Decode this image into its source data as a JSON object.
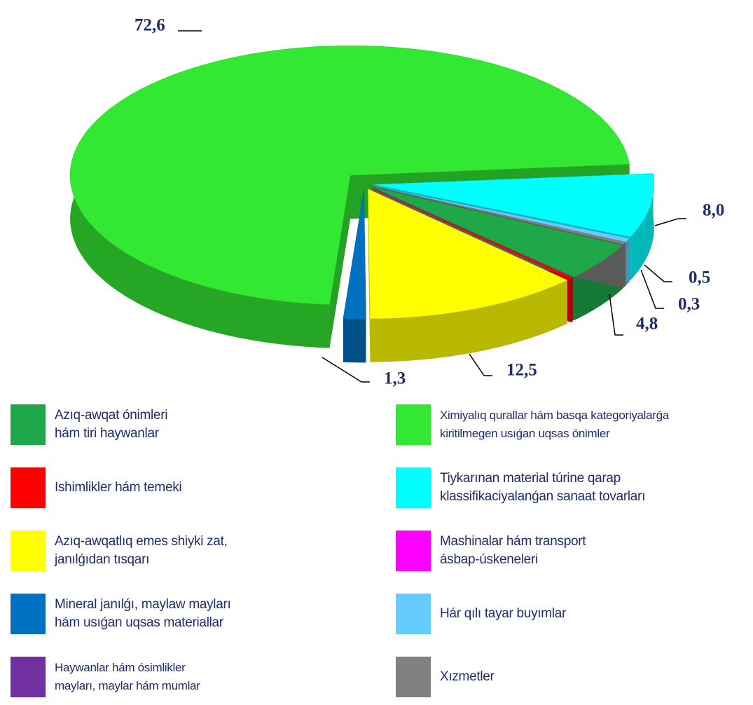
{
  "chart_data": {
    "type": "pie3d",
    "categories": [
      "Azıq-awqat ónimleri\nhám tiri haywanlar",
      "Ishimlikler hám temeki",
      "Azıq-awqatlıq emes shiyki zat,\njanılǵıdan tısqarı",
      "Mineral janılǵı, maylaw mayları\nhám usıǵan uqsas materiallar",
      "Haywanlar hám ósimlikler\nmayları, maylar hám mumlar",
      "Ximiyalıq qurallar hám basqa kategoriyalarǵa\nkiritilmegen usıǵan uqsas ónimler",
      "Tiykarınan material túrine qarap\nklassifikaciyalanǵan sanaat tovarları",
      "Mashinalar hám transport\násbap-úskeneleri",
      "Hár qılı tayar buyımlar",
      "Xızmetler"
    ],
    "values": [
      4.8,
      0.2,
      12.5,
      1.3,
      null,
      72.6,
      8.0,
      null,
      0.5,
      0.3
    ],
    "value_labels": [
      "4,8",
      null,
      "12,5",
      "1,3",
      null,
      "72,6",
      "8,0",
      null,
      "0,5",
      "0,3"
    ],
    "colors": [
      "#1fa84a",
      "#ff0000",
      "#ffff00",
      "#0070c0",
      "#7030a0",
      "#33e833",
      "#00ffff",
      "#ff00ff",
      "#66ccff",
      "#808080"
    ]
  }
}
